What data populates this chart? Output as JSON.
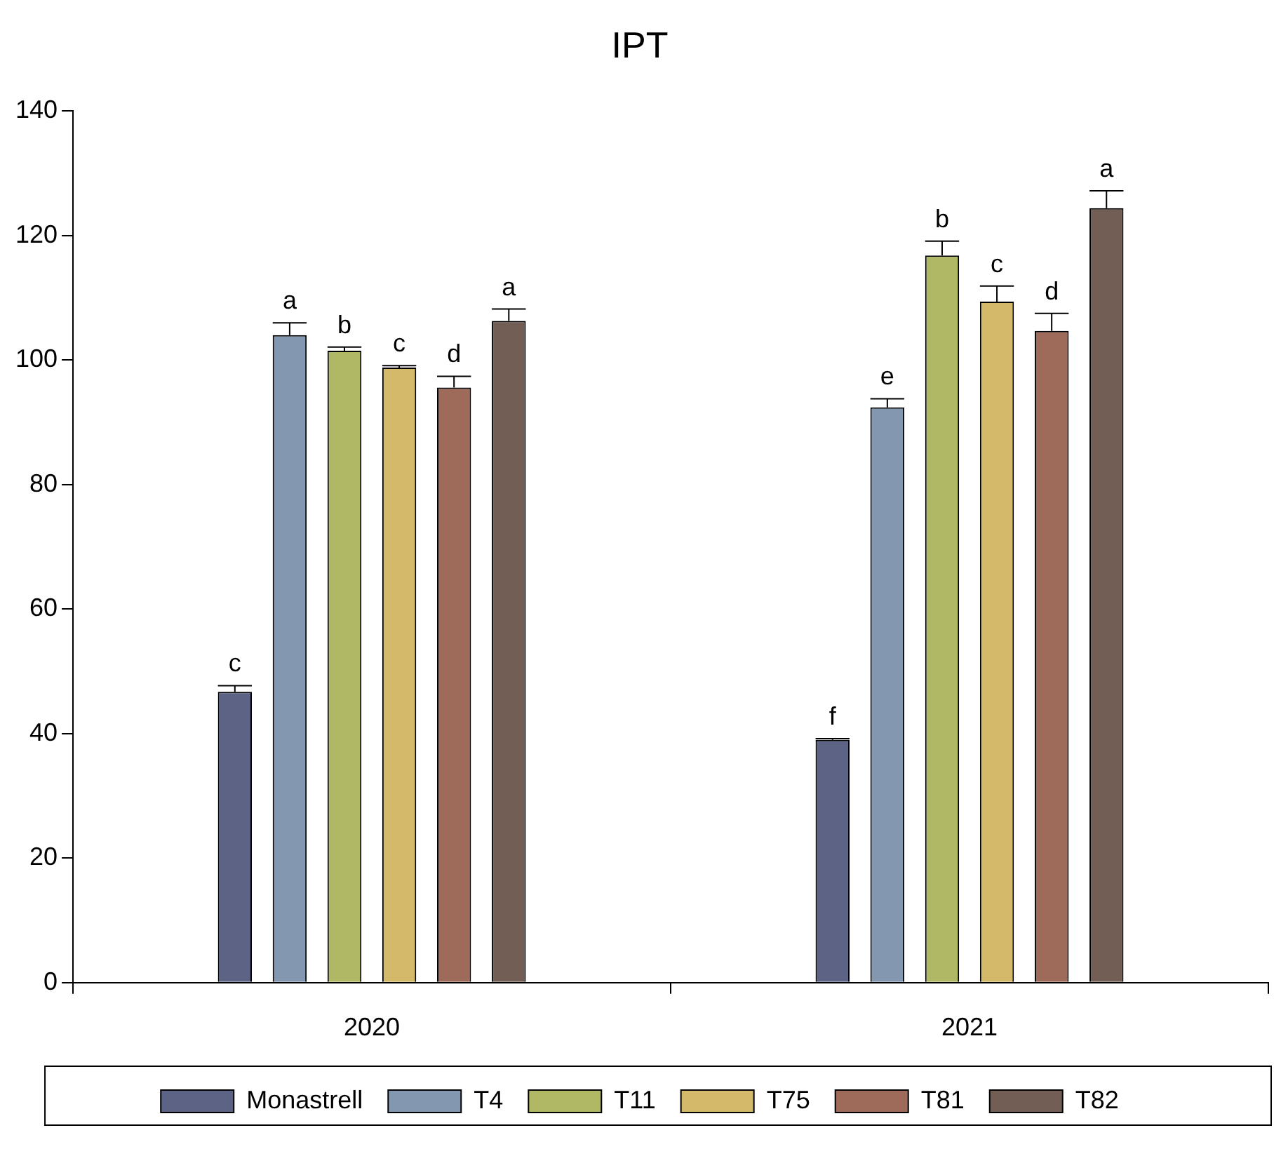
{
  "chart_data": {
    "type": "bar",
    "title": "IPT",
    "categories": [
      "2020",
      "2021"
    ],
    "series": [
      {
        "name": "Monastrell",
        "color": "#5c6384",
        "values": [
          46.7,
          39.0
        ],
        "errors": [
          1.0,
          0.2
        ],
        "value_labels": [
          "c",
          "f"
        ]
      },
      {
        "name": "T4",
        "color": "#8497b0",
        "values": [
          104.0,
          92.4
        ],
        "errors": [
          2.0,
          1.4
        ],
        "value_labels": [
          "a",
          "e"
        ]
      },
      {
        "name": "T11",
        "color": "#b0b866",
        "values": [
          101.5,
          116.8
        ],
        "errors": [
          0.6,
          2.3
        ],
        "value_labels": [
          "b",
          "b"
        ]
      },
      {
        "name": "T75",
        "color": "#d4b96a",
        "values": [
          98.8,
          109.4
        ],
        "errors": [
          0.3,
          2.5
        ],
        "value_labels": [
          "c",
          "c"
        ]
      },
      {
        "name": "T81",
        "color": "#9e6a5a",
        "values": [
          95.6,
          104.7
        ],
        "errors": [
          1.8,
          2.8
        ],
        "value_labels": [
          "d",
          "d"
        ]
      },
      {
        "name": "T82",
        "color": "#735e55",
        "values": [
          106.3,
          124.4
        ],
        "errors": [
          1.9,
          2.8
        ],
        "value_labels": [
          "a",
          "a"
        ]
      }
    ],
    "ylim": [
      0,
      140
    ],
    "yticks": [
      0,
      20,
      40,
      60,
      80,
      100,
      120,
      140
    ],
    "grid": false,
    "legend": "bottom"
  }
}
